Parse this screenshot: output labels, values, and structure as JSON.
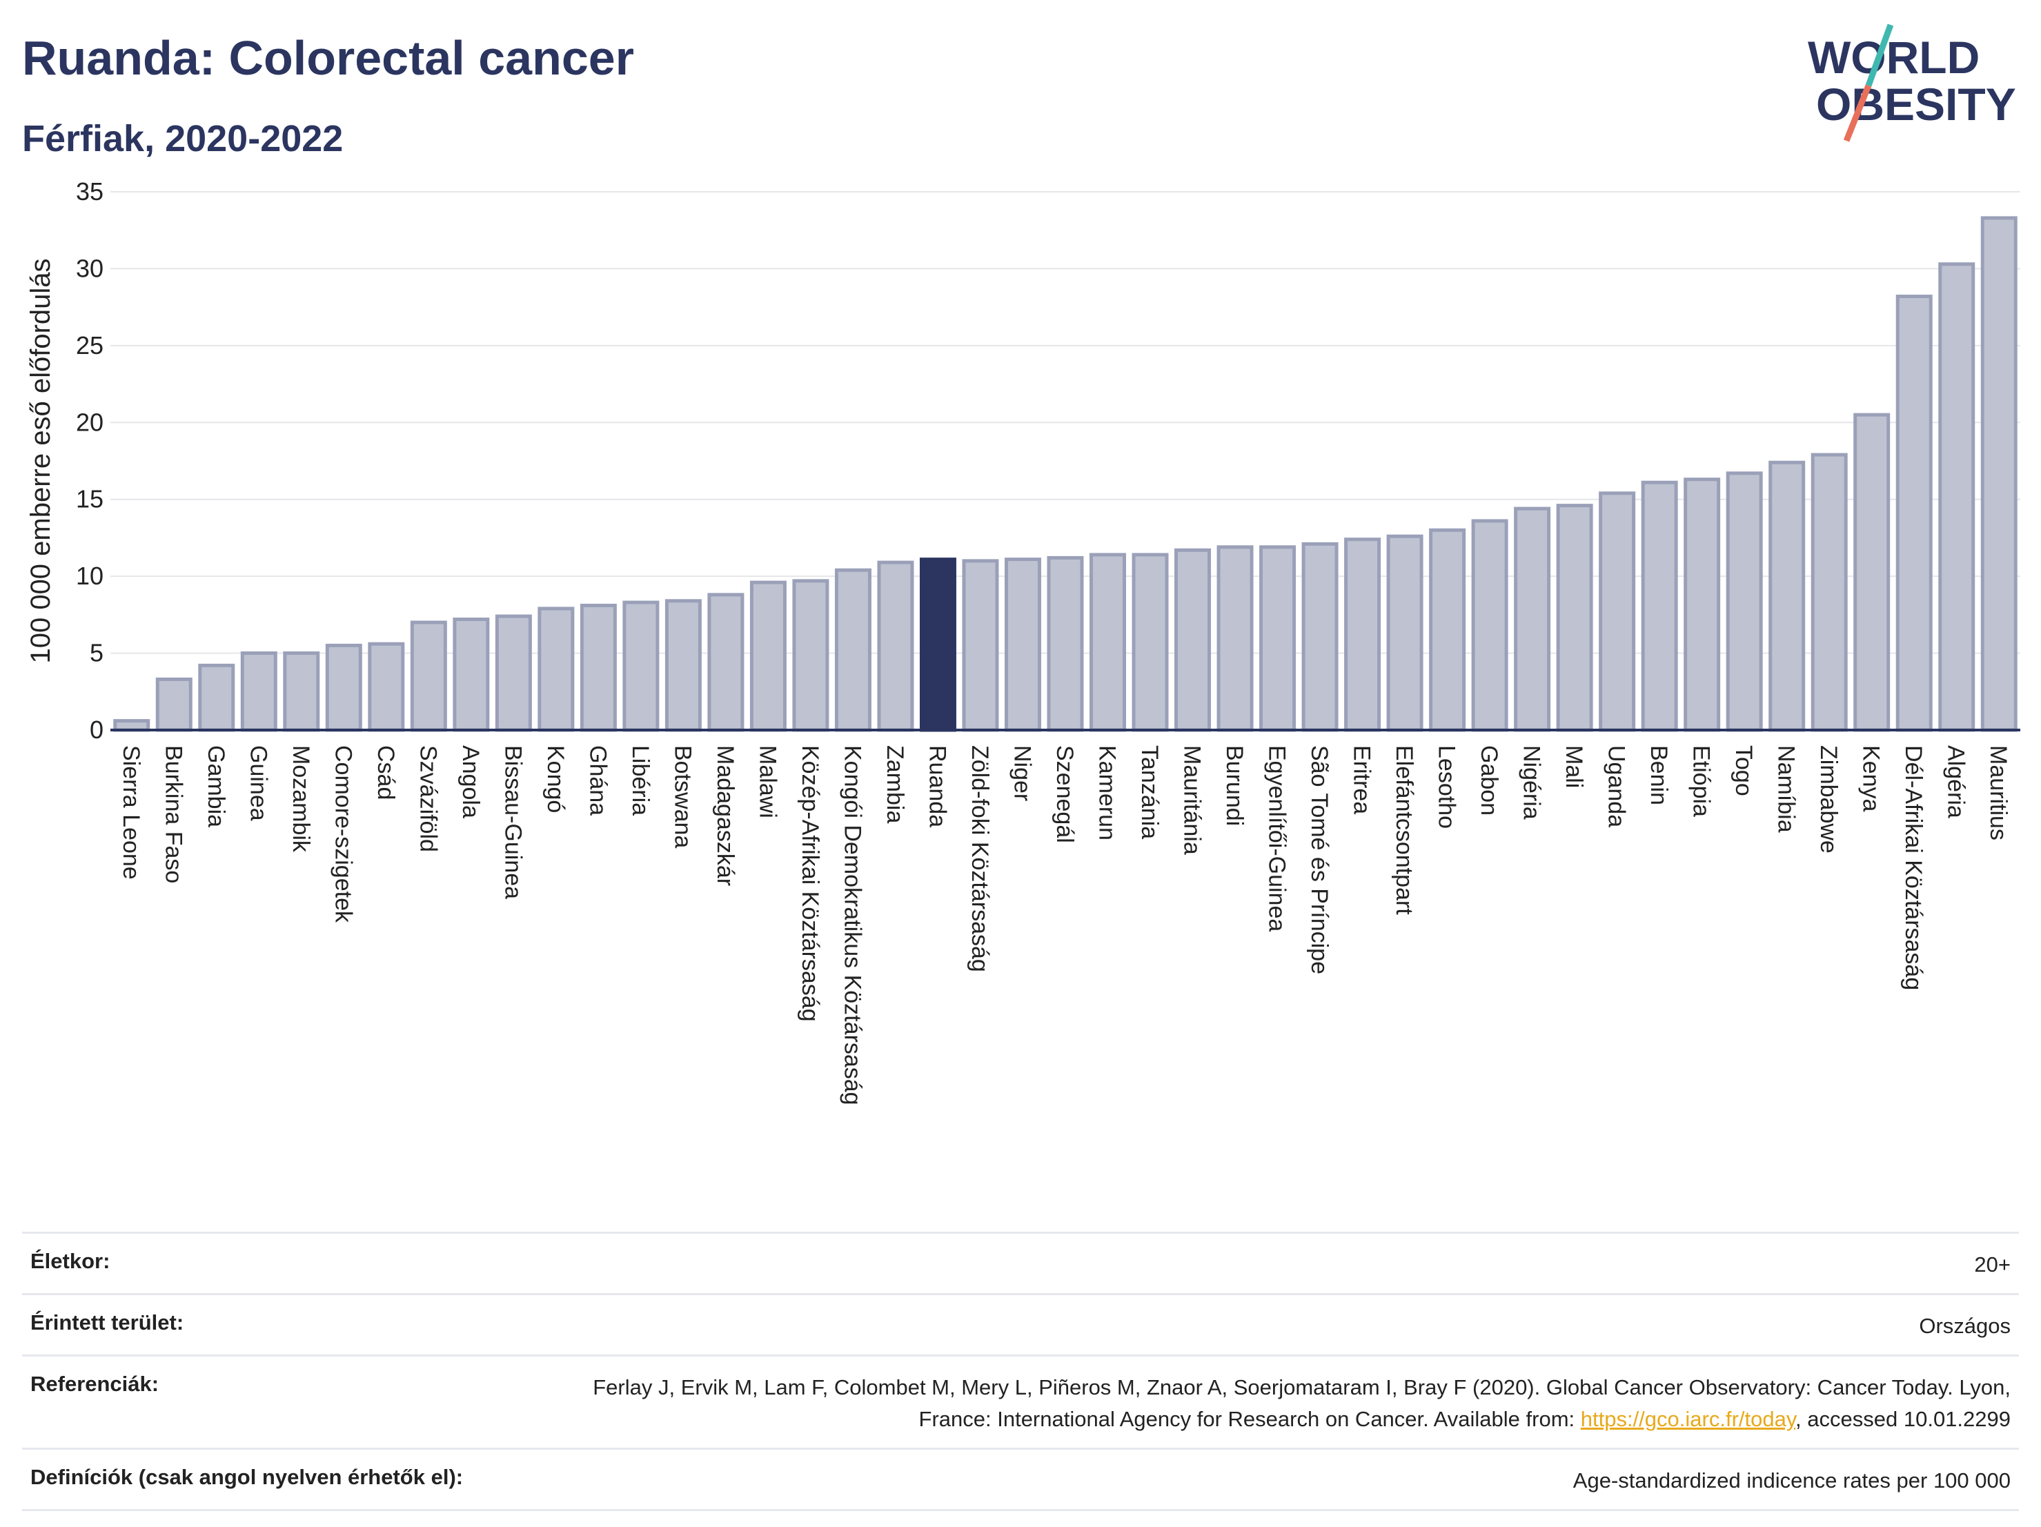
{
  "header": {
    "title": "Ruanda: Colorectal cancer",
    "subtitle": "Férfiak, 2020-2022"
  },
  "logo": {
    "line1": "WORLD",
    "line2": "OBESITY",
    "colors": {
      "text": "#2b3560",
      "slash_teal": "#3fb8b0",
      "slash_coral": "#e8705a"
    }
  },
  "colors": {
    "bar_fill": "#bfc3d1",
    "bar_stroke": "#9aa0b8",
    "highlight_fill": "#2b3560",
    "grid": "#e6e6ea",
    "axis": "#2b3560"
  },
  "chart_data": {
    "type": "bar",
    "ylabel": "100 000 emberre eső előfordulás",
    "xlabel": "",
    "ylim": [
      0,
      35
    ],
    "yticks": [
      0,
      5,
      10,
      15,
      20,
      25,
      30,
      35
    ],
    "grid": true,
    "highlight": "Ruanda",
    "categories": [
      "Sierra Leone",
      "Burkina Faso",
      "Gambia",
      "Guinea",
      "Mozambik",
      "Comore-szigetek",
      "Csád",
      "Szváziföld",
      "Angola",
      "Bissau-Guinea",
      "Kongó",
      "Ghána",
      "Libéria",
      "Botswana",
      "Madagaszkár",
      "Malawi",
      "Közép-Afrikai Köztársaság",
      "Kongói Demokratikus Köztársaság",
      "Zambia",
      "Ruanda",
      "Zöld-foki Köztársaság",
      "Niger",
      "Szenegál",
      "Kamerun",
      "Tanzánia",
      "Mauritánia",
      "Burundi",
      "Egyenlítői-Guinea",
      "São Tomé és Príncipe",
      "Eritrea",
      "Elefántcsontpart",
      "Lesotho",
      "Gabon",
      "Nigéria",
      "Mali",
      "Uganda",
      "Benin",
      "Etiópia",
      "Togo",
      "Namíbia",
      "Zimbabwe",
      "Kenya",
      "Dél-Afrikai Köztársaság",
      "Algéria",
      "Mauritius"
    ],
    "values": [
      0.6,
      3.3,
      4.2,
      5.0,
      5.0,
      5.5,
      5.6,
      7.0,
      7.2,
      7.4,
      7.9,
      8.1,
      8.3,
      8.4,
      8.8,
      9.6,
      9.7,
      10.4,
      10.9,
      11.1,
      11.0,
      11.1,
      11.2,
      11.4,
      11.4,
      11.7,
      11.9,
      11.9,
      12.1,
      12.4,
      12.6,
      13.0,
      13.6,
      14.4,
      14.6,
      15.4,
      16.1,
      16.3,
      16.7,
      17.4,
      17.9,
      20.5,
      28.2,
      30.3,
      33.3
    ]
  },
  "info": {
    "rows": [
      {
        "key": "Életkor:",
        "value": "20+"
      },
      {
        "key": "Érintett terület:",
        "value": "Országos"
      }
    ],
    "references": {
      "key": "Referenciák:",
      "text_before": "Ferlay J, Ervik M, Lam F, Colombet M, Mery L, Piñeros M, Znaor A, Soerjomataram I, Bray F (2020). Global Cancer Observatory: Cancer Today. Lyon, France: International Agency for Research on Cancer. Available from: ",
      "link": "https://gco.iarc.fr/today",
      "text_after": ", accessed 10.01.2299"
    },
    "definitions": {
      "key": "Definíciók (csak angol nyelven érhetők el):",
      "value": "Age-standardized indicence rates per 100 000"
    }
  }
}
